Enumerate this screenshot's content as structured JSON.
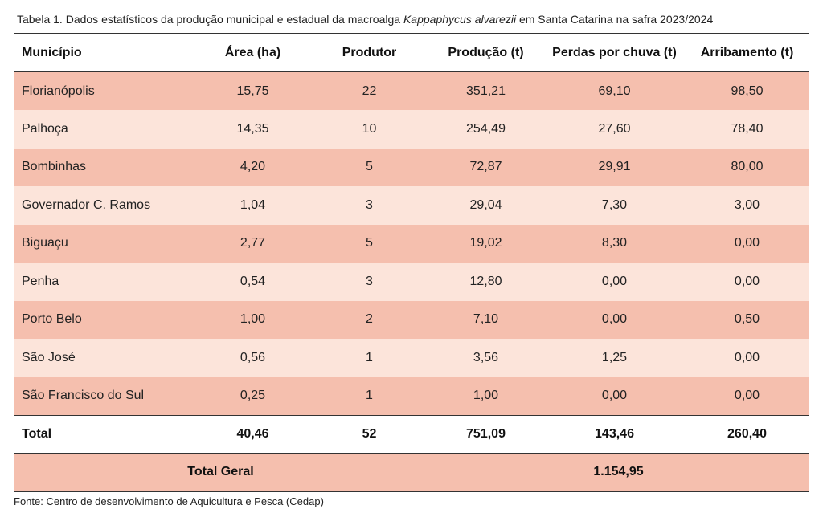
{
  "caption": {
    "prefix": "Tabela 1. Dados estatísticos da produção municipal e estadual da macroalga ",
    "species": "Kappaphycus alvarezii",
    "suffix": " em Santa Catarina na safra 2023/2024"
  },
  "table": {
    "headers": [
      "Município",
      "Área (ha)",
      "Produtor",
      "Produção (t)",
      "Perdas por chuva (t)",
      "Arribamento (t)"
    ],
    "rows": [
      [
        "Florianópolis",
        "15,75",
        "22",
        "351,21",
        "69,10",
        "98,50"
      ],
      [
        "Palhoça",
        "14,35",
        "10",
        "254,49",
        "27,60",
        "78,40"
      ],
      [
        "Bombinhas",
        "4,20",
        "5",
        "72,87",
        "29,91",
        "80,00"
      ],
      [
        "Governador C. Ramos",
        "1,04",
        "3",
        "29,04",
        "7,30",
        "3,00"
      ],
      [
        "Biguaçu",
        "2,77",
        "5",
        "19,02",
        "8,30",
        "0,00"
      ],
      [
        "Penha",
        "0,54",
        "3",
        "12,80",
        "0,00",
        "0,00"
      ],
      [
        "Porto Belo",
        "1,00",
        "2",
        "7,10",
        "0,00",
        "0,50"
      ],
      [
        "São José",
        "0,56",
        "1",
        "3,56",
        "1,25",
        "0,00"
      ],
      [
        "São Francisco do Sul",
        "0,25",
        "1",
        "1,00",
        "0,00",
        "0,00"
      ]
    ],
    "total": [
      "Total",
      "40,46",
      "52",
      "751,09",
      "143,46",
      "260,40"
    ],
    "grand_total": {
      "label": "Total Geral",
      "value": "1.154,95"
    }
  },
  "source": "Fonte: Centro de desenvolvimento de Aquicultura e Pesca (Cedap)",
  "colors": {
    "row_dark": "#f5bfae",
    "row_light": "#fce4da"
  }
}
